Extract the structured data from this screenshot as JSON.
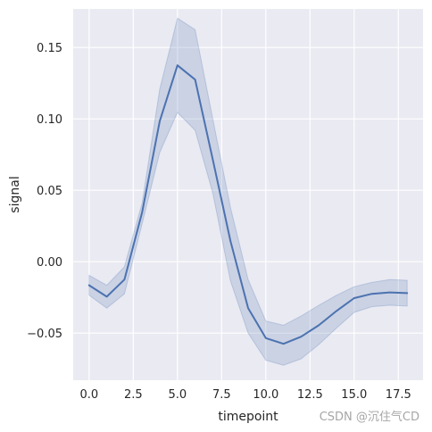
{
  "chart_data": {
    "type": "line",
    "xlabel": "timepoint",
    "ylabel": "signal",
    "xlim": [
      -0.9,
      18.9
    ],
    "ylim": [
      -0.083,
      0.177
    ],
    "xticks": [
      0.0,
      2.5,
      5.0,
      7.5,
      10.0,
      12.5,
      15.0,
      17.5
    ],
    "xtick_labels": [
      "0.0",
      "2.5",
      "5.0",
      "7.5",
      "10.0",
      "12.5",
      "15.0",
      "17.5"
    ],
    "yticks": [
      -0.05,
      0.0,
      0.05,
      0.1,
      0.15
    ],
    "ytick_labels": [
      "−0.05",
      "0.00",
      "0.05",
      "0.10",
      "0.15"
    ],
    "grid": true,
    "series": [
      {
        "x": [
          0,
          1,
          2,
          3,
          4,
          5,
          6,
          7,
          8,
          9,
          10,
          11,
          12,
          13,
          14,
          15,
          16,
          17,
          18
        ],
        "y": [
          -0.0165,
          -0.0245,
          -0.0125,
          0.0345,
          0.0985,
          0.1375,
          0.1275,
          0.0715,
          0.0145,
          -0.0325,
          -0.0535,
          -0.0575,
          -0.0525,
          -0.0445,
          -0.0345,
          -0.0255,
          -0.0225,
          -0.0215,
          -0.022
        ],
        "ci_lower": [
          -0.0235,
          -0.0325,
          -0.0225,
          0.0265,
          0.0765,
          0.1045,
          0.092,
          0.048,
          -0.0135,
          -0.05,
          -0.069,
          -0.0725,
          -0.068,
          -0.058,
          -0.0465,
          -0.0355,
          -0.0315,
          -0.0305,
          -0.031
        ],
        "ci_upper": [
          -0.0095,
          -0.0165,
          -0.0035,
          0.041,
          0.121,
          0.1705,
          0.1625,
          0.1,
          0.038,
          -0.0125,
          -0.0415,
          -0.0445,
          -0.038,
          -0.0305,
          -0.0235,
          -0.0175,
          -0.0145,
          -0.0125,
          -0.013
        ]
      }
    ],
    "colors": {
      "background": "#eaeaf2",
      "grid": "#ffffff",
      "line": "#4c72b0",
      "band": "#4c72b0"
    }
  },
  "watermark": "CSDN @沉住气CD"
}
